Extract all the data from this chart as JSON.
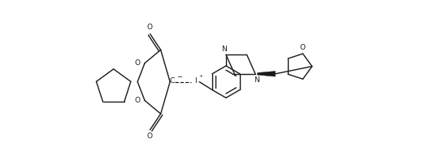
{
  "figsize": [
    5.46,
    1.98
  ],
  "dpi": 100,
  "bg_color": "#ffffff",
  "line_color": "#1a1a1a",
  "line_width": 1.0,
  "font_size": 6.5,
  "xlim": [
    0,
    10.5
  ],
  "ylim": [
    -1.8,
    4.2
  ]
}
